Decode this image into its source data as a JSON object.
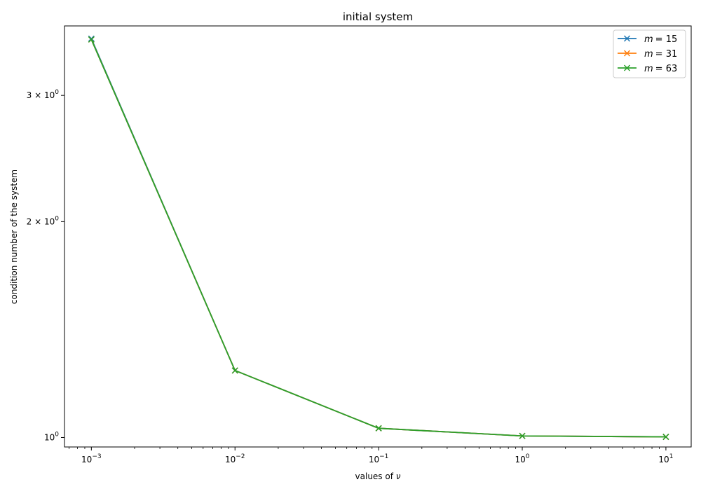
{
  "chart_data": {
    "type": "line",
    "title": "initial system",
    "xlabel_prefix": "values of ",
    "xlabel_symbol": "ν",
    "ylabel": "condition number of the system",
    "xscale": "log",
    "yscale": "log",
    "xlim": [
      0.00065,
      15
    ],
    "ylim": [
      0.97,
      3.75
    ],
    "x": [
      0.001,
      0.01,
      0.1,
      1,
      10
    ],
    "xticks": [
      {
        "value": 0.001,
        "base": "10",
        "exp": "−3"
      },
      {
        "value": 0.01,
        "base": "10",
        "exp": "−2"
      },
      {
        "value": 0.1,
        "base": "10",
        "exp": "−1"
      },
      {
        "value": 1,
        "base": "10",
        "exp": "0"
      },
      {
        "value": 10,
        "base": "10",
        "exp": "1"
      }
    ],
    "yticks": [
      {
        "value": 1,
        "mant": "",
        "base": "10",
        "exp": "0"
      },
      {
        "value": 2,
        "mant": "2 × ",
        "base": "10",
        "exp": "0"
      },
      {
        "value": 3,
        "mant": "3 × ",
        "base": "10",
        "exp": "0"
      }
    ],
    "grid": false,
    "legend_position": "top-right",
    "series": [
      {
        "name": "= 15",
        "var": "m",
        "color": "#1f77b4",
        "values": [
          3.6,
          1.24,
          1.03,
          1.005,
          1.002
        ]
      },
      {
        "name": "= 31",
        "var": "m",
        "color": "#ff7f0e",
        "values": [
          3.59,
          1.24,
          1.03,
          1.005,
          1.002
        ]
      },
      {
        "name": "= 63",
        "var": "m",
        "color": "#2ca02c",
        "values": [
          3.59,
          1.24,
          1.03,
          1.005,
          1.002
        ]
      }
    ]
  }
}
